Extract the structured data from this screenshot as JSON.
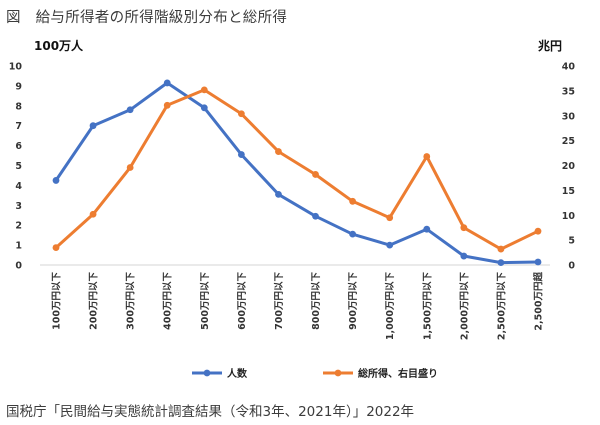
{
  "figure": {
    "title": "図　給与所得者の所得階級別分布と総所得",
    "source": "国税庁「民間給与実態統計調査結果（令和3年、2021年）」2022年"
  },
  "chart_data": {
    "type": "line",
    "left_axis_unit": "100万人",
    "right_axis_unit": "兆円",
    "categories": [
      "100万円以下",
      "200万円以下",
      "300万円以下",
      "400万円以下",
      "500万円以下",
      "600万円以下",
      "700万円以下",
      "800万円以下",
      "900万円以下",
      "1,000万円以下",
      "1,500万円以下",
      "2,000万円以下",
      "2,500万円以下",
      "2,500万円超"
    ],
    "y_left": {
      "range": [
        0,
        10
      ],
      "ticks": [
        0,
        1,
        2,
        3,
        4,
        5,
        6,
        7,
        8,
        9,
        10
      ]
    },
    "y_right": {
      "range": [
        0,
        40
      ],
      "ticks": [
        0,
        5,
        10,
        15,
        20,
        25,
        30,
        35,
        40
      ]
    },
    "grid": false,
    "legend_position": "bottom",
    "series": [
      {
        "name": "人数",
        "axis": "left",
        "color": "#4472C4",
        "values": [
          4.25,
          7.0,
          7.8,
          9.15,
          7.9,
          5.55,
          3.55,
          2.45,
          1.55,
          1.0,
          1.8,
          0.45,
          0.12,
          0.15
        ]
      },
      {
        "name": "総所得、右目盛り",
        "axis": "right",
        "color": "#ED7D31",
        "values": [
          3.5,
          10.2,
          19.6,
          32.1,
          35.2,
          30.4,
          22.8,
          18.2,
          12.8,
          9.5,
          21.8,
          7.5,
          3.2,
          6.8
        ]
      }
    ]
  }
}
